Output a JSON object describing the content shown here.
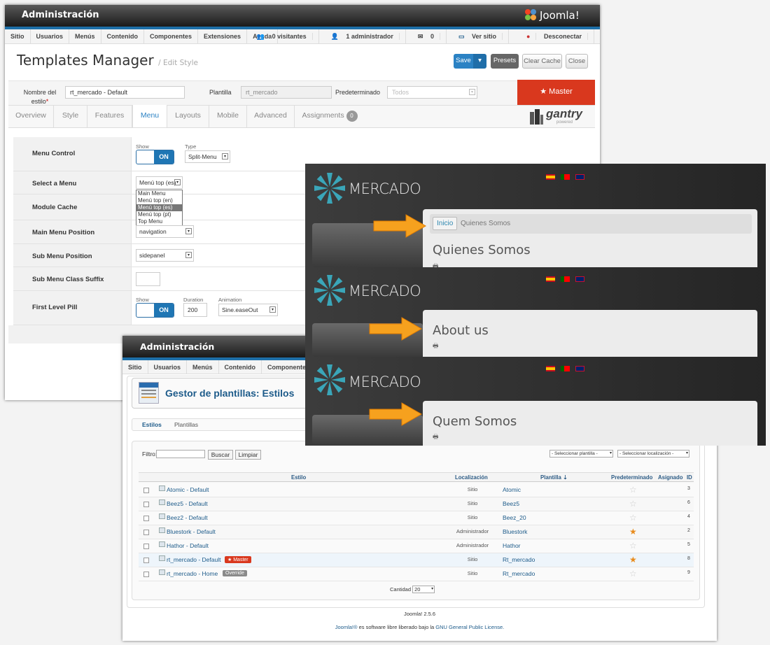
{
  "top": {
    "title": "Administración",
    "brand": "Joomla!",
    "menu": [
      "Sitio",
      "Usuarios",
      "Menús",
      "Contenido",
      "Componentes",
      "Extensiones",
      "Ayuda"
    ],
    "status": {
      "visitors": "0 visitantes",
      "admins": "1 administrador",
      "messages": "0",
      "view_site": "Ver sitio",
      "logout": "Desconectar"
    },
    "heading": "Templates Manager",
    "subheading": "/ Edit Style",
    "buttons": {
      "save": "Save",
      "presets": "Presets",
      "clear_cache": "Clear Cache",
      "close": "Close"
    },
    "fields": {
      "name_label": "Nombre del estilo",
      "name_value": "rt_mercado - Default",
      "plantilla_label": "Plantilla",
      "plantilla_value": "rt_mercado",
      "predeterminado_label": "Predeterminado",
      "predeterminado_value": "Todos",
      "master": "Master"
    },
    "tabs": [
      "Overview",
      "Style",
      "Features",
      "Menu",
      "Layouts",
      "Mobile",
      "Advanced",
      "Assignments"
    ],
    "assignments_count": "0",
    "gantry": "gantry",
    "gantry_sub": "powered",
    "rows": {
      "menu_control": "Menu Control",
      "select_menu": "Select a Menu",
      "module_cache": "Module Cache",
      "main_menu_position": "Main Menu Position",
      "sub_menu_position": "Sub Menu Position",
      "sub_menu_class_suffix": "Sub Menu Class Suffix",
      "first_level_pill": "First Level Pill"
    },
    "controls": {
      "show": "Show",
      "on": "ON",
      "type": "Type",
      "type_value": "Split-Menu",
      "select_menu_value": "Menú top (es)",
      "menu_options": [
        "Main Menu",
        "Menú top (en)",
        "Menú top (es)",
        "Menú top (pt)",
        "Top Menu"
      ],
      "main_position": "navigation",
      "sub_position": "sidepanel",
      "duration": "Duration",
      "duration_value": "200",
      "animation": "Animation",
      "animation_value": "Sine.easeOut"
    }
  },
  "mercado": {
    "logo_text": "MERCADO",
    "panels": [
      {
        "breadcrumb_home": "Inicio",
        "breadcrumb_page": "Quienes Somos",
        "title": "Quienes Somos"
      },
      {
        "title": "About us"
      },
      {
        "title": "Quem Somos"
      }
    ]
  },
  "bottom": {
    "title": "Administración",
    "menu": [
      "Sitio",
      "Usuarios",
      "Menús",
      "Contenido",
      "Componentes"
    ],
    "heading": "Gestor de plantillas: Estilos",
    "tabs": [
      "Estilos",
      "Plantillas"
    ],
    "filter_label": "Filtro:",
    "search": "Buscar",
    "clear": "Limpiar",
    "select_template": "- Seleccionar plantilla -",
    "select_location": "- Seleccionar localización -",
    "columns": {
      "estilo": "Estilo",
      "localizacion": "Localización",
      "plantilla": "Plantilla",
      "predeterminado": "Predeterminado",
      "asignado": "Asignado",
      "id": "ID"
    },
    "rows": [
      {
        "name": "Atomic - Default",
        "loc": "Sitio",
        "tpl": "Atomic",
        "default": false,
        "id": "3"
      },
      {
        "name": "Beez5 - Default",
        "loc": "Sitio",
        "tpl": "Beez5",
        "default": false,
        "id": "6"
      },
      {
        "name": "Beez2 - Default",
        "loc": "Sitio",
        "tpl": "Beez_20",
        "default": false,
        "id": "4"
      },
      {
        "name": "Bluestork - Default",
        "loc": "Administrador",
        "tpl": "Bluestork",
        "default": true,
        "id": "2"
      },
      {
        "name": "Hathor - Default",
        "loc": "Administrador",
        "tpl": "Hathor",
        "default": false,
        "id": "5"
      },
      {
        "name": "rt_mercado - Default",
        "loc": "Sitio",
        "tpl": "Rt_mercado",
        "default": true,
        "id": "8",
        "badge": "Master"
      },
      {
        "name": "rt_mercado - Home",
        "loc": "Sitio",
        "tpl": "Rt_mercado",
        "default": false,
        "id": "9",
        "badge": "Override"
      }
    ],
    "cantidad_label": "Cantidad",
    "cantidad_value": "20",
    "version": "Joomla! 2.5.6",
    "footer_a": "Joomla!®",
    "footer_b": " es software libre liberado bajo la ",
    "footer_c": "GNU General Public License."
  }
}
